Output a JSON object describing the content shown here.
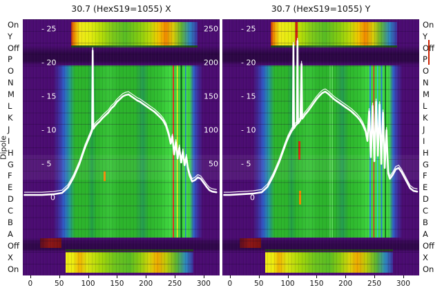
{
  "figure_titles": {
    "x_panel": "30.7 (HexS19=1055) X",
    "y_panel": "30.7 (HexS19=1055) Y"
  },
  "dipole": {
    "axis_title": "Dipole",
    "labels": [
      "On",
      "Y",
      "Off",
      "P",
      "O",
      "N",
      "M",
      "L",
      "K",
      "J",
      "I",
      "H",
      "G",
      "F",
      "E",
      "D",
      "C",
      "B",
      "A",
      "Off",
      "X",
      "On"
    ]
  },
  "axis": {
    "x_ticks": [
      0,
      50,
      100,
      150,
      200,
      250,
      300
    ],
    "y_tick_labels": [
      {
        "text": "- 25",
        "value": 25
      },
      {
        "text": "- 20",
        "value": 20
      },
      {
        "text": "- 15",
        "value": 15
      },
      {
        "text": "- 10",
        "value": 10
      },
      {
        "text": "- 5",
        "value": 5
      },
      {
        "text": "0",
        "value": 0
      }
    ],
    "y_right_labels": [
      {
        "text": "250",
        "value": 25
      },
      {
        "text": "200",
        "value": 20
      },
      {
        "text": "150",
        "value": 15
      },
      {
        "text": "100",
        "value": 10
      },
      {
        "text": "50",
        "value": 5
      }
    ]
  },
  "colors": {
    "background": "#ffffff",
    "purple": "#4b0c72",
    "blue": "#2f5fc8",
    "teal": "#23949b",
    "green": "#2cb42c",
    "green_bright": "#40d840",
    "yellow": "#e8e400",
    "orange": "#f08800",
    "red": "#cc2200",
    "dark_red": "#7c1212",
    "line": "#ffffff",
    "text": "#111111"
  },
  "chart_data": [
    {
      "type": "heatmap",
      "title": "30.7 (HexS19=1055) X",
      "x_range": [
        -13,
        327
      ],
      "x_ticks": [
        0,
        50,
        100,
        150,
        200,
        250,
        300
      ],
      "overlay_line_y_range": [
        0,
        25
      ],
      "overlay_line_y_ticks": [
        25,
        20,
        15,
        10,
        5,
        0
      ],
      "right_axis_ticks": [
        250,
        200,
        150,
        100,
        50
      ],
      "row_labels_top_to_bottom": [
        "On",
        "Y",
        "Off",
        "P",
        "O",
        "N",
        "M",
        "L",
        "K",
        "J",
        "I",
        "H",
        "G",
        "F",
        "E",
        "D",
        "C",
        "B",
        "A",
        "Off",
        "X",
        "On"
      ],
      "heatmap_regions": [
        {
          "rows": "On/Y top band",
          "x_range": [
            71,
            289
          ],
          "colors": "red-orange, yellow, green, yellow-orange, green, blue"
        },
        {
          "rows": "P..A core",
          "x_range": [
            62,
            292
          ],
          "colors": "purple, blue, teal, green plateau, bright-green strip 240-276 with thin red/yellow/blue lines, blue, purple"
        },
        {
          "rows": "Off rows",
          "x_range": [
            -13,
            327
          ],
          "colors": "dark purple with dark-red segment at left of lower Off row"
        },
        {
          "rows": "X/On bottom band",
          "x_range": [
            61,
            282
          ],
          "colors": "yellow, green, orange, green, blue"
        }
      ],
      "overlay_line": {
        "name": "beam-profile-x",
        "x": [
          -10,
          0,
          20,
          40,
          55,
          65,
          75,
          85,
          95,
          100,
          105,
          107,
          108,
          109,
          112,
          115,
          120,
          125,
          130,
          135,
          140,
          145,
          150,
          155,
          160,
          165,
          170,
          175,
          180,
          185,
          190,
          195,
          200,
          205,
          210,
          215,
          220,
          225,
          230,
          235,
          240,
          243,
          246,
          249,
          252,
          255,
          258,
          261,
          264,
          267,
          270,
          273,
          276,
          280,
          285,
          290,
          295,
          300,
          305,
          310,
          315,
          322
        ],
        "y": [
          0.4,
          0.4,
          0.4,
          0.5,
          0.7,
          1.5,
          3,
          5,
          7.5,
          8.5,
          9.5,
          10,
          21.8,
          10.2,
          10.6,
          10.9,
          11.3,
          11.8,
          12.2,
          12.6,
          13.2,
          13.6,
          14.2,
          14.6,
          15,
          15.2,
          15.3,
          15,
          14.7,
          14.4,
          14.2,
          13.9,
          13.6,
          13.3,
          13,
          12.7,
          12.3,
          11.9,
          11.4,
          10.6,
          9.2,
          8,
          9,
          6.4,
          8.2,
          5.8,
          7.4,
          5.2,
          6.8,
          4.8,
          6,
          4.2,
          3.2,
          2.4,
          2.6,
          3,
          2.8,
          2.2,
          1.6,
          1.1,
          0.9,
          0.8
        ]
      }
    },
    {
      "type": "heatmap",
      "title": "30.7 (HexS19=1055) Y",
      "x_range": [
        -13,
        327
      ],
      "x_ticks": [
        0,
        50,
        100,
        150,
        200,
        250,
        300
      ],
      "overlay_line_y_range": [
        0,
        25
      ],
      "overlay_line_y_ticks": [
        25,
        20,
        15,
        10,
        5,
        0
      ],
      "row_labels_top_to_bottom": [
        "On",
        "Y",
        "Off",
        "P",
        "O",
        "N",
        "M",
        "L",
        "K",
        "J",
        "I",
        "H",
        "G",
        "F",
        "E",
        "D",
        "C",
        "B",
        "A",
        "Off",
        "X",
        "On"
      ],
      "heatmap_regions": [
        {
          "rows": "On/Y top band",
          "x_range": [
            71,
            289
          ],
          "colors": "red-orange, yellow with thin red line near x=110, green, yellow-orange, green, blue"
        },
        {
          "rows": "P..A core",
          "x_range": [
            62,
            292
          ],
          "colors": "purple, blue, teal, green plateau with small red/orange marks near x=120, bright-green strip 240-276 with thin blue/red/cyan lines, blue, purple"
        },
        {
          "rows": "Off rows",
          "x_range": [
            -13,
            327
          ],
          "colors": "dark purple with dark-red segment at left of lower Off row"
        },
        {
          "rows": "X/On bottom band",
          "x_range": [
            61,
            282
          ],
          "colors": "yellow, green, orange, green, blue"
        }
      ],
      "overlay_line": {
        "name": "beam-profile-y",
        "x": [
          -10,
          0,
          20,
          40,
          55,
          65,
          75,
          85,
          95,
          98,
          101,
          104,
          107,
          109,
          110,
          111,
          113,
          116,
          117,
          118,
          119,
          122,
          124,
          125,
          127,
          130,
          135,
          140,
          145,
          150,
          155,
          160,
          165,
          170,
          175,
          180,
          185,
          190,
          195,
          200,
          205,
          210,
          215,
          220,
          225,
          230,
          235,
          238,
          241,
          244,
          247,
          250,
          253,
          256,
          259,
          262,
          265,
          268,
          271,
          274,
          277,
          282,
          287,
          292,
          297,
          302,
          307,
          312,
          318,
          324
        ],
        "y": [
          0.4,
          0.4,
          0.5,
          0.6,
          0.8,
          1.6,
          3.2,
          5.2,
          7.6,
          8.3,
          8.9,
          9.4,
          9.9,
          10.1,
          22.6,
          10.3,
          10.6,
          10.9,
          23.2,
          11.0,
          11.1,
          11.5,
          19.8,
          11.7,
          11.9,
          12.3,
          12.8,
          13.4,
          14.0,
          14.6,
          15.1,
          15.5,
          15.7,
          15.4,
          15.0,
          14.6,
          14.3,
          14.0,
          13.7,
          13.4,
          13.1,
          12.8,
          12.4,
          12.0,
          11.5,
          10.8,
          9.8,
          8.4,
          12.8,
          6.0,
          13.6,
          5.4,
          14.2,
          6.2,
          13.8,
          5.0,
          12.6,
          4.4,
          10.0,
          3.6,
          2.8,
          3.4,
          4.2,
          4.4,
          3.8,
          3.0,
          2.2,
          1.4,
          1.0,
          0.9
        ]
      }
    }
  ]
}
